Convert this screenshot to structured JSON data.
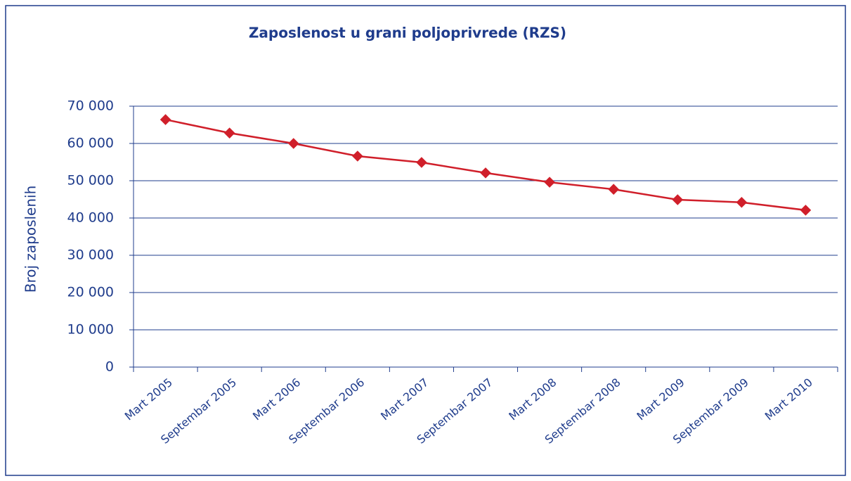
{
  "chart_data": {
    "type": "line",
    "title": "Zaposlenost u grani poljoprivrede (RZS)",
    "y_label": "Broj zaposlenih",
    "categories": [
      "Mart 2005",
      "Septembar 2005",
      "Mart 2006",
      "Septembar 2006",
      "Mart 2007",
      "Septembar 2007",
      "Mart 2008",
      "Septembar 2008",
      "Mart 2009",
      "Septembar 2009",
      "Mart 2010"
    ],
    "series": [
      {
        "name": "Broj zaposlenih",
        "color": "#d01f2a",
        "values": [
          66400,
          62800,
          60000,
          56600,
          54900,
          52100,
          49600,
          47700,
          44900,
          44200,
          42100
        ]
      }
    ],
    "ylim": [
      0,
      70000
    ],
    "yticks": [
      0,
      {
        "value": 10000,
        "label": "10 000"
      },
      {
        "value": 20000,
        "label": "20 000"
      },
      {
        "value": 30000,
        "label": "30 000"
      },
      {
        "value": 40000,
        "label": "40 000"
      },
      {
        "value": 50000,
        "label": "50 000"
      },
      {
        "value": 60000,
        "label": "60 000"
      },
      {
        "value": 70000,
        "label": "70 000"
      }
    ],
    "grid": true
  }
}
